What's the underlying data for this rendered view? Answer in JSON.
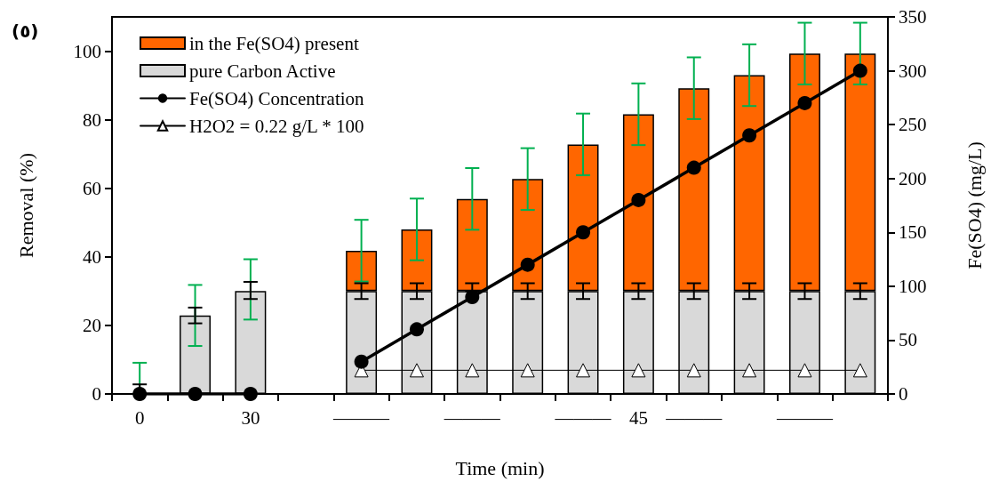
{
  "chart_data": {
    "type": "bar",
    "title": "(٥)",
    "xlabel": "Time (min)",
    "ylabel": "Removal (%)",
    "y2label": "Fe(SO4) (mg/L)",
    "categories": [
      "0",
      null,
      "30",
      null,
      "———",
      null,
      "———",
      null,
      "———",
      "45",
      "———",
      null,
      "———",
      null
    ],
    "stacked": true,
    "series": [
      {
        "name": "pure Carbon Active",
        "color": "#d9d9d9",
        "values": [
          0,
          22.9,
          30,
          null,
          30,
          30,
          30,
          30,
          30,
          30,
          30,
          30,
          30,
          30
        ],
        "errors": [
          [
            0,
            2.8
          ],
          [
            20.6,
            25.2
          ],
          [
            27.7,
            32.7
          ],
          null,
          [
            27.7,
            32.3
          ],
          [
            27.7,
            32.3
          ],
          [
            30,
            32.3
          ],
          [
            27.7,
            32.3
          ],
          [
            27.7,
            32.3
          ],
          [
            27.7,
            32.3
          ],
          [
            27.7,
            32.3
          ],
          [
            27.7,
            32.3
          ],
          [
            27.7,
            32.3
          ],
          [
            27.7,
            32.3
          ]
        ]
      },
      {
        "name": "in the Fe(SO4) present",
        "color": "#ff6600",
        "values": [
          0,
          0,
          0,
          null,
          11.8,
          18,
          26.9,
          32.7,
          42.8,
          51.6,
          59.2,
          63,
          69.3,
          69.3
        ],
        "errors": [
          [
            0,
            9.1
          ],
          [
            14,
            31.8
          ],
          [
            21.7,
            39.3
          ],
          null,
          [
            32.8,
            50.8
          ],
          [
            39,
            57
          ],
          [
            47.9,
            65.9
          ],
          [
            53.7,
            71.7
          ],
          [
            63.8,
            81.8
          ],
          [
            72.6,
            90.6
          ],
          [
            80.2,
            98.2
          ],
          [
            84,
            102
          ],
          [
            90.3,
            108.3
          ],
          [
            90.3,
            108.3
          ]
        ]
      },
      {
        "name": "Fe(SO4) Concentration",
        "type": "line",
        "axis": "y2",
        "color": "#000000",
        "marker": "circle",
        "values": [
          0,
          0,
          0,
          null,
          30,
          60,
          90,
          120,
          150,
          180,
          210,
          240,
          270,
          300
        ]
      },
      {
        "name": "H2O2 = 0.22 g/L * 100",
        "type": "line",
        "axis": "y2",
        "color": "#000000",
        "marker": "triangle",
        "values": [
          null,
          null,
          null,
          null,
          22,
          22,
          22,
          22,
          22,
          22,
          22,
          22,
          22,
          22
        ]
      }
    ],
    "ylim": [
      0,
      110
    ],
    "yticks": [
      0,
      20,
      40,
      60,
      80,
      100
    ],
    "y2lim": [
      0,
      350
    ],
    "y2ticks": [
      0,
      50,
      100,
      150,
      200,
      250,
      300,
      350
    ],
    "grid": false,
    "legend": "top left"
  }
}
